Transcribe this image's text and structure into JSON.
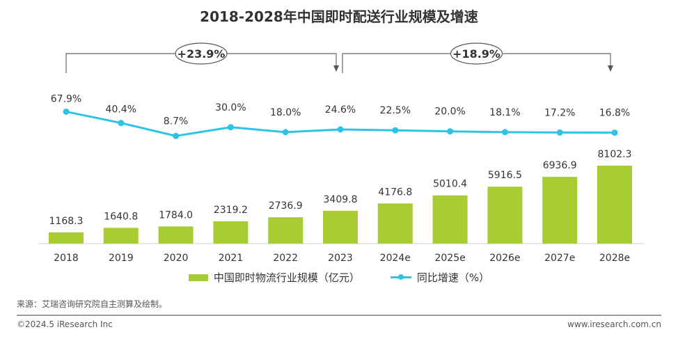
{
  "chart_data": {
    "type": "bar+line",
    "title": "2018-2028年中国即时配送行业规模及增速",
    "categories": [
      "2018",
      "2019",
      "2020",
      "2021",
      "2022",
      "2023",
      "2024e",
      "2025e",
      "2026e",
      "2027e",
      "2028e"
    ],
    "series": [
      {
        "name": "中国即时物流行业规模（亿元）",
        "type": "bar",
        "color": "#a8cd33",
        "values": [
          1168.3,
          1640.8,
          1784.0,
          2319.2,
          2736.9,
          3409.8,
          4176.8,
          5010.4,
          5916.5,
          6936.9,
          8102.3
        ],
        "labels": [
          "1168.3",
          "1640.8",
          "1784.0",
          "2319.2",
          "2736.9",
          "3409.8",
          "4176.8",
          "5010.4",
          "5916.5",
          "6936.9",
          "8102.3"
        ]
      },
      {
        "name": "同比增速（%）",
        "type": "line",
        "color": "#2ec3e6",
        "values": [
          67.9,
          40.4,
          8.7,
          30.0,
          18.0,
          24.6,
          22.5,
          20.0,
          18.1,
          17.2,
          16.8
        ],
        "labels": [
          "67.9%",
          "40.4%",
          "8.7%",
          "30.0%",
          "18.0%",
          "24.6%",
          "22.5%",
          "20.0%",
          "18.1%",
          "17.2%",
          "16.8%"
        ]
      }
    ],
    "annotations": [
      {
        "label": "+23.9%",
        "from": "2018",
        "to": "2023"
      },
      {
        "label": "+18.9%",
        "from": "2023",
        "to": "2028e"
      }
    ],
    "legend": "bottom-center"
  },
  "footer": {
    "source": "来源：艾瑞咨询研究院自主测算及绘制。",
    "copyright": "©2024.5 iResearch Inc",
    "website": "www.iresearch.com.cn"
  }
}
